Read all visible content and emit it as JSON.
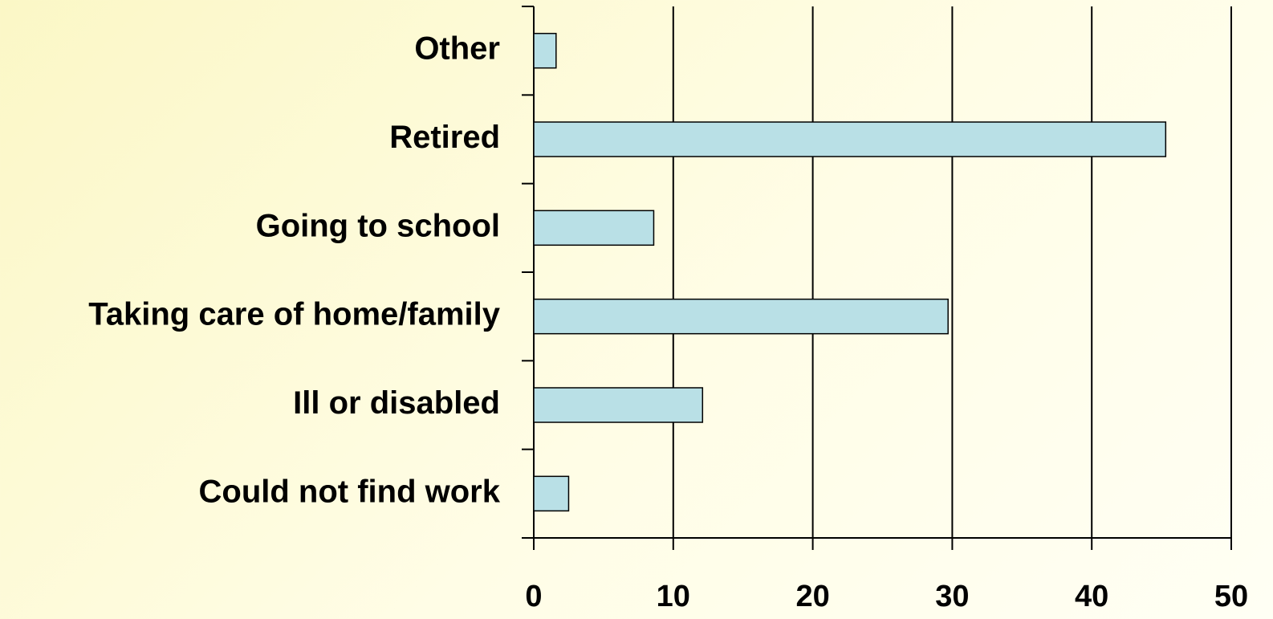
{
  "chart_data": {
    "type": "barh",
    "categories": [
      "Other",
      "Retired",
      "Going to school",
      "Taking care of home/family",
      "Ill or disabled",
      "Could not find work"
    ],
    "values": [
      1.6,
      45.3,
      8.6,
      29.7,
      12.1,
      2.5
    ],
    "color": "#b9e0e6",
    "xlim": [
      0,
      50
    ],
    "xticks": [
      0,
      10,
      20,
      30,
      40,
      50
    ],
    "grid": true
  }
}
